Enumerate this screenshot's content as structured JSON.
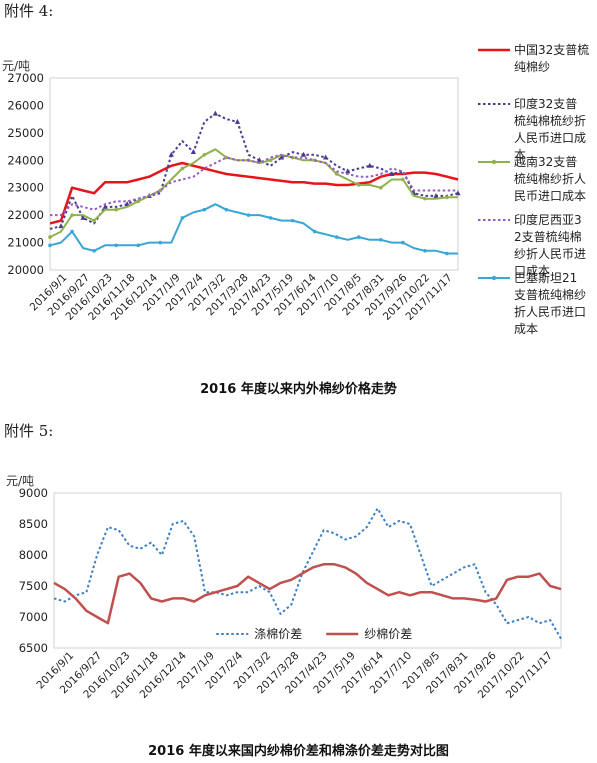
{
  "attachments": {
    "a4": "附件 4:",
    "a5": "附件 5:"
  },
  "colors": {
    "china": "#e8141a",
    "india": "#4a3b8f",
    "vietnam": "#8fb24a",
    "indonesia": "#9b59c6",
    "pakistan": "#3aa6d6",
    "polyester": "#3b7fc4",
    "yarn_gap": "#c0504d"
  },
  "chart_data": [
    {
      "type": "line",
      "title": "2016 年度以来内外棉纱价格走势",
      "yunit": "元/吨",
      "ylim": [
        20000,
        27000
      ],
      "yticks": [
        "20000",
        "21000",
        "22000",
        "23000",
        "24000",
        "25000",
        "26000",
        "27000"
      ],
      "xticks": [
        "2016/9/1",
        "2016/9/27",
        "2016/10/23",
        "2016/11/18",
        "2016/12/14",
        "2017/1/9",
        "2017/2/4",
        "2017/3/2",
        "2017/3/28",
        "2017/4/23",
        "2017/5/19",
        "2017/6/14",
        "2017/7/10",
        "2017/8/5",
        "2017/8/31",
        "2017/9/26",
        "2017/10/22",
        "2017/11/17"
      ],
      "series": [
        {
          "name": "中国32支普梳纯棉纱",
          "style": "solid",
          "values": [
            21700,
            21800,
            23000,
            22900,
            22800,
            23200,
            23200,
            23200,
            23300,
            23400,
            23600,
            23800,
            23900,
            23800,
            23700,
            23600,
            23500,
            23450,
            23400,
            23350,
            23300,
            23250,
            23200,
            23200,
            23150,
            23150,
            23100,
            23100,
            23150,
            23200,
            23400,
            23500,
            23500,
            23550,
            23550,
            23500,
            23400,
            23300
          ]
        },
        {
          "name": "印度32支普梳纯棉梳纱折人民币进口成本",
          "style": "dotted",
          "values": [
            21500,
            21600,
            22700,
            21900,
            21700,
            22300,
            22300,
            22400,
            22600,
            22700,
            22800,
            24200,
            24700,
            24300,
            25400,
            25700,
            25500,
            25400,
            24200,
            24000,
            23800,
            24100,
            24300,
            24200,
            24200,
            24100,
            23800,
            23600,
            23700,
            23800,
            23700,
            23500,
            23600,
            22800,
            22700,
            22700,
            22700,
            22800
          ]
        },
        {
          "name": "越南32支普梳纯棉纱折人民币进口成本",
          "style": "solid-markers",
          "values": [
            21200,
            21400,
            22000,
            22000,
            21800,
            22200,
            22200,
            22300,
            22500,
            22700,
            22900,
            23300,
            23700,
            23900,
            24200,
            24400,
            24100,
            24000,
            24000,
            23900,
            24000,
            24200,
            24100,
            24000,
            24000,
            23900,
            23500,
            23300,
            23100,
            23100,
            23000,
            23300,
            23300,
            22700,
            22600,
            22600,
            22650,
            22650
          ]
        },
        {
          "name": "印度尼西亚32支普梳纯棉纱折人民币进口成本",
          "style": "dotted",
          "values": [
            22000,
            22000,
            22400,
            22300,
            22200,
            22400,
            22500,
            22500,
            22600,
            22700,
            22900,
            23200,
            23300,
            23400,
            23700,
            23900,
            24100,
            24000,
            24000,
            23900,
            24100,
            24200,
            24100,
            24100,
            24000,
            23900,
            23600,
            23500,
            23400,
            23400,
            23500,
            23700,
            23600,
            22900,
            22900,
            22900,
            22900,
            22900
          ]
        },
        {
          "name": "巴基斯坦21支普梳纯棉纱折人民币进口成本",
          "style": "solid-markers",
          "values": [
            20900,
            21000,
            21400,
            20800,
            20700,
            20900,
            20900,
            20900,
            20900,
            21000,
            21000,
            21000,
            21900,
            22100,
            22200,
            22400,
            22200,
            22100,
            22000,
            22000,
            21900,
            21800,
            21800,
            21700,
            21400,
            21300,
            21200,
            21100,
            21200,
            21100,
            21100,
            21000,
            21000,
            20800,
            20700,
            20700,
            20600,
            20600
          ]
        }
      ]
    },
    {
      "type": "line",
      "title": "2016 年度以来国内纱棉价差和棉涤价差走势对比图",
      "yunit": "元/吨",
      "ylim": [
        6500,
        9000
      ],
      "yticks": [
        "6500",
        "7000",
        "7500",
        "8000",
        "8500",
        "9000"
      ],
      "xticks": [
        "2016/9/1",
        "2016/9/27",
        "2016/10/23",
        "2016/11/18",
        "2016/12/14",
        "2017/1/9",
        "2017/2/4",
        "2017/3/2",
        "2017/3/28",
        "2017/4/23",
        "2017/5/19",
        "2017/6/14",
        "2017/7/10",
        "2017/8/5",
        "2017/8/31",
        "2017/9/26",
        "2017/10/22",
        "2017/11/17"
      ],
      "legend_position": "bottom-center",
      "series": [
        {
          "name": "涤棉价差",
          "style": "dotted",
          "values": [
            7300,
            7250,
            7350,
            7400,
            8000,
            8450,
            8400,
            8150,
            8100,
            8200,
            8000,
            8500,
            8550,
            8300,
            7400,
            7400,
            7350,
            7400,
            7400,
            7500,
            7400,
            7050,
            7200,
            7700,
            8050,
            8400,
            8350,
            8250,
            8300,
            8450,
            8750,
            8450,
            8550,
            8500,
            8000,
            7500,
            7600,
            7700,
            7800,
            7850,
            7400,
            7200,
            6900,
            6950,
            7000,
            6900,
            6950,
            6650
          ]
        },
        {
          "name": "纱棉价差",
          "style": "solid",
          "values": [
            7550,
            7450,
            7300,
            7100,
            7000,
            6900,
            7650,
            7700,
            7550,
            7300,
            7250,
            7300,
            7300,
            7250,
            7350,
            7400,
            7450,
            7500,
            7650,
            7550,
            7450,
            7550,
            7600,
            7700,
            7800,
            7850,
            7850,
            7800,
            7700,
            7550,
            7450,
            7350,
            7400,
            7350,
            7400,
            7400,
            7350,
            7300,
            7300,
            7280,
            7250,
            7300,
            7600,
            7650,
            7650,
            7700,
            7500,
            7450
          ]
        }
      ]
    }
  ]
}
